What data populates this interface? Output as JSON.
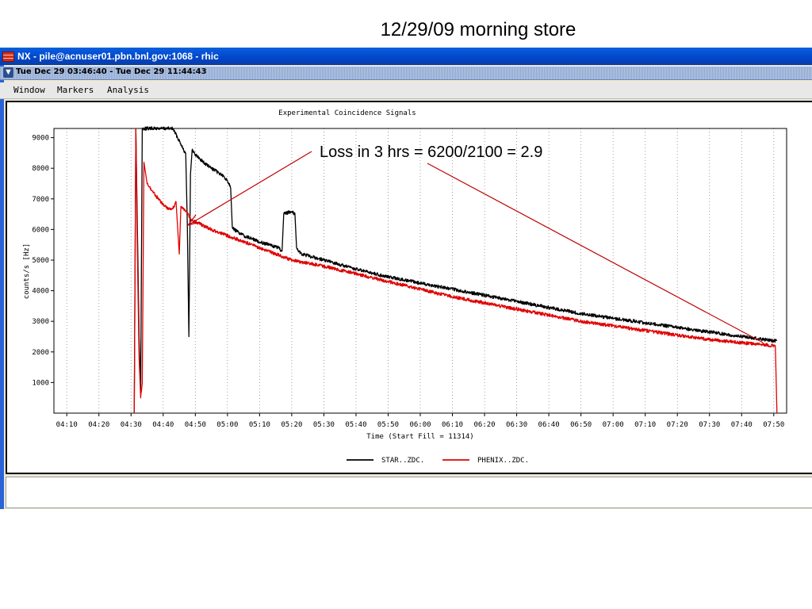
{
  "slide": {
    "title": "12/29/09 morning store"
  },
  "window": {
    "title": "NX - pile@acnuser01.pbn.bnl.gov:1068 - rhic",
    "time_range": "Tue Dec 29 03:46:40 - Tue Dec 29 11:44:43",
    "menu": [
      "Window",
      "Markers",
      "Analysis"
    ]
  },
  "annotation": {
    "text": "Loss in 3 hrs = 6200/2100 = 2.9",
    "color": "#c00000"
  },
  "chart_data": {
    "type": "line",
    "title": "Experimental Coincidence Signals",
    "xlabel": "Time (Start Fill = 11314)",
    "ylabel": "counts/s [Hz]",
    "x_ticks": [
      "04:10",
      "04:20",
      "04:30",
      "04:40",
      "04:50",
      "05:00",
      "05:10",
      "05:20",
      "05:30",
      "05:40",
      "05:50",
      "06:00",
      "06:10",
      "06:20",
      "06:30",
      "06:40",
      "06:50",
      "07:00",
      "07:10",
      "07:20",
      "07:30",
      "07:40",
      "07:50"
    ],
    "y_ticks": [
      1000,
      2000,
      3000,
      4000,
      5000,
      6000,
      7000,
      8000,
      9000
    ],
    "xlim": [
      "04:06",
      "07:54"
    ],
    "ylim": [
      0,
      9300
    ],
    "grid": "vertical-dotted",
    "legend_position": "bottom-center",
    "series": [
      {
        "name": "STAR..ZDC.",
        "color": "#000000",
        "points": [
          [
            "04:31",
            0
          ],
          [
            "04:31.5",
            9300
          ],
          [
            "04:32.5",
            2500
          ],
          [
            "04:33",
            700
          ],
          [
            "04:33.5",
            9300
          ],
          [
            "04:34",
            9300
          ],
          [
            "04:43",
            9300
          ],
          [
            "04:45",
            8900
          ],
          [
            "04:46",
            8700
          ],
          [
            "04:47",
            8450
          ],
          [
            "04:47.5",
            6200
          ],
          [
            "04:48",
            2500
          ],
          [
            "04:48.5",
            7800
          ],
          [
            "04:49",
            8600
          ],
          [
            "04:50",
            8450
          ],
          [
            "04:53",
            8150
          ],
          [
            "04:55",
            8000
          ],
          [
            "04:58",
            7800
          ],
          [
            "05:00",
            7600
          ],
          [
            "05:01",
            7400
          ],
          [
            "05:01.5",
            6100
          ],
          [
            "05:02",
            6000
          ],
          [
            "05:05",
            5800
          ],
          [
            "05:10",
            5600
          ],
          [
            "05:16",
            5400
          ],
          [
            "05:17",
            5250
          ],
          [
            "05:17.5",
            6500
          ],
          [
            "05:20",
            6600
          ],
          [
            "05:21",
            6500
          ],
          [
            "05:21.5",
            5400
          ],
          [
            "05:23",
            5200
          ],
          [
            "05:30",
            5000
          ],
          [
            "05:40",
            4700
          ],
          [
            "05:50",
            4450
          ],
          [
            "06:00",
            4250
          ],
          [
            "06:10",
            4050
          ],
          [
            "06:20",
            3850
          ],
          [
            "06:30",
            3650
          ],
          [
            "06:40",
            3450
          ],
          [
            "06:50",
            3250
          ],
          [
            "07:00",
            3100
          ],
          [
            "07:10",
            2950
          ],
          [
            "07:20",
            2800
          ],
          [
            "07:30",
            2650
          ],
          [
            "07:40",
            2500
          ],
          [
            "07:51",
            2350
          ]
        ]
      },
      {
        "name": "PHENIX..ZDC.",
        "color": "#e00000",
        "points": [
          [
            "04:31",
            0
          ],
          [
            "04:31.5",
            9300
          ],
          [
            "04:32",
            5000
          ],
          [
            "04:32.5",
            1800
          ],
          [
            "04:33",
            500
          ],
          [
            "04:33.5",
            1000
          ],
          [
            "04:34",
            8200
          ],
          [
            "04:35",
            7500
          ],
          [
            "04:37",
            7200
          ],
          [
            "04:40",
            6800
          ],
          [
            "04:42",
            6650
          ],
          [
            "04:43",
            6700
          ],
          [
            "04:44",
            6900
          ],
          [
            "04:45",
            5200
          ],
          [
            "04:45.5",
            6750
          ],
          [
            "04:47",
            6600
          ],
          [
            "04:49",
            6300
          ],
          [
            "04:52",
            6150
          ],
          [
            "04:55",
            6000
          ],
          [
            "05:00",
            5800
          ],
          [
            "05:05",
            5600
          ],
          [
            "05:10",
            5400
          ],
          [
            "05:15",
            5200
          ],
          [
            "05:20",
            5000
          ],
          [
            "05:30",
            4800
          ],
          [
            "05:40",
            4550
          ],
          [
            "05:50",
            4300
          ],
          [
            "06:00",
            4050
          ],
          [
            "06:10",
            3800
          ],
          [
            "06:20",
            3600
          ],
          [
            "06:30",
            3400
          ],
          [
            "06:40",
            3200
          ],
          [
            "06:50",
            3000
          ],
          [
            "07:00",
            2850
          ],
          [
            "07:10",
            2700
          ],
          [
            "07:20",
            2550
          ],
          [
            "07:30",
            2400
          ],
          [
            "07:40",
            2300
          ],
          [
            "07:50.5",
            2200
          ],
          [
            "07:51",
            0
          ]
        ]
      }
    ]
  }
}
